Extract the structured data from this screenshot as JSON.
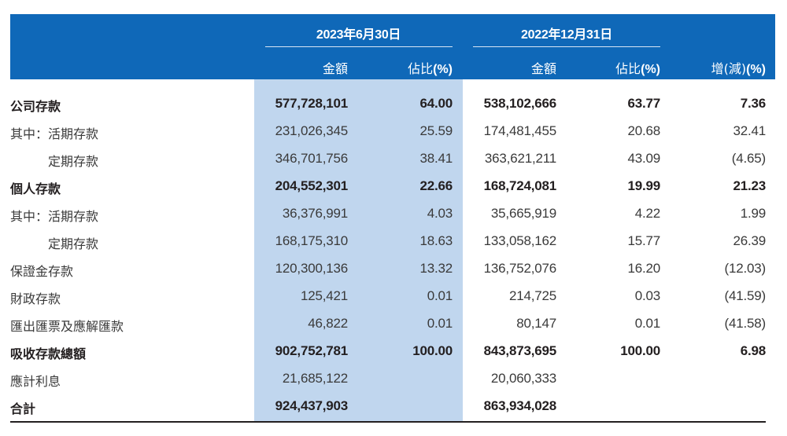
{
  "header": {
    "periods": [
      {
        "label": "2023年6月30日"
      },
      {
        "label": "2022年12月31日"
      }
    ],
    "columns": {
      "amount_2023": "金額",
      "pct_2023_text": "佔比",
      "pct_2023_unit": "(%)",
      "amount_2022": "金額",
      "pct_2022_text": "佔比",
      "pct_2022_unit": "(%)",
      "change_text": "增(減)",
      "change_unit": "(%)"
    }
  },
  "rows": [
    {
      "label": "公司存款",
      "bold": true,
      "indent": false,
      "amt2023": "577,728,101",
      "pct2023": "64.00",
      "amt2022": "538,102,666",
      "pct2022": "63.77",
      "change": "7.36"
    },
    {
      "label": "其中：活期存款",
      "bold": false,
      "indent": false,
      "amt2023": "231,026,345",
      "pct2023": "25.59",
      "amt2022": "174,481,455",
      "pct2022": "20.68",
      "change": "32.41"
    },
    {
      "label": "定期存款",
      "bold": false,
      "indent": true,
      "amt2023": "346,701,756",
      "pct2023": "38.41",
      "amt2022": "363,621,211",
      "pct2022": "43.09",
      "change": "(4.65)"
    },
    {
      "label": "個人存款",
      "bold": true,
      "indent": false,
      "amt2023": "204,552,301",
      "pct2023": "22.66",
      "amt2022": "168,724,081",
      "pct2022": "19.99",
      "change": "21.23"
    },
    {
      "label": "其中：活期存款",
      "bold": false,
      "indent": false,
      "amt2023": "36,376,991",
      "pct2023": "4.03",
      "amt2022": "35,665,919",
      "pct2022": "4.22",
      "change": "1.99"
    },
    {
      "label": "定期存款",
      "bold": false,
      "indent": true,
      "amt2023": "168,175,310",
      "pct2023": "18.63",
      "amt2022": "133,058,162",
      "pct2022": "15.77",
      "change": "26.39"
    },
    {
      "label": "保證金存款",
      "bold": false,
      "indent": false,
      "amt2023": "120,300,136",
      "pct2023": "13.32",
      "amt2022": "136,752,076",
      "pct2022": "16.20",
      "change": "(12.03)"
    },
    {
      "label": "財政存款",
      "bold": false,
      "indent": false,
      "amt2023": "125,421",
      "pct2023": "0.01",
      "amt2022": "214,725",
      "pct2022": "0.03",
      "change": "(41.59)"
    },
    {
      "label": "匯出匯票及應解匯款",
      "bold": false,
      "indent": false,
      "amt2023": "46,822",
      "pct2023": "0.01",
      "amt2022": "80,147",
      "pct2022": "0.01",
      "change": "(41.58)"
    },
    {
      "label": "吸收存款總額",
      "bold": true,
      "indent": false,
      "amt2023": "902,752,781",
      "pct2023": "100.00",
      "amt2022": "843,873,695",
      "pct2022": "100.00",
      "change": "6.98"
    },
    {
      "label": "應計利息",
      "bold": false,
      "indent": false,
      "amt2023": "21,685,122",
      "pct2023": "",
      "amt2022": "20,060,333",
      "pct2022": "",
      "change": ""
    },
    {
      "label": "合計",
      "bold": true,
      "indent": false,
      "amt2023": "924,437,903",
      "pct2023": "",
      "amt2022": "863,934,028",
      "pct2022": "",
      "change": ""
    }
  ],
  "colors": {
    "header_bg": "#0f68b8",
    "highlight_column_bg": "#c0d6ee",
    "text": "#231f20"
  }
}
